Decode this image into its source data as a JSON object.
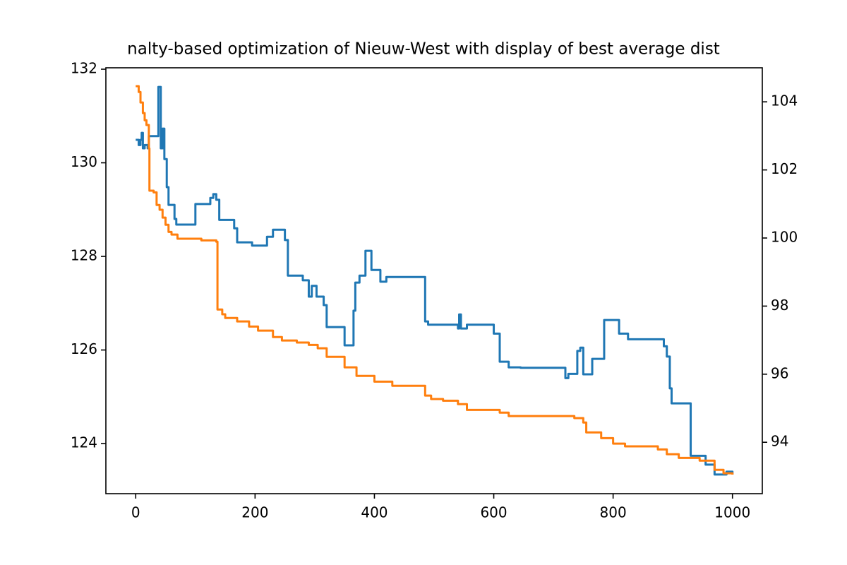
{
  "chart_data": {
    "type": "line",
    "drawstyle": "steps-post",
    "title": "nalty-based optimization of Nieuw-West with display of best average dist",
    "xlim": [
      -50,
      1050
    ],
    "xticks": [
      0,
      200,
      400,
      600,
      800,
      1000
    ],
    "ylim": [
      122.93,
      132.03
    ],
    "yticks": [
      124,
      126,
      128,
      130,
      132
    ],
    "y2lim": [
      92.49,
      105.0
    ],
    "y2ticks": [
      94,
      96,
      98,
      100,
      102,
      104
    ],
    "series": [
      {
        "color": "#1f77b4",
        "x": [
          0,
          5,
          8,
          10,
          12,
          15,
          20,
          22,
          35,
          38,
          42,
          45,
          48,
          52,
          55,
          65,
          68,
          100,
          125,
          130,
          135,
          140,
          165,
          170,
          195,
          220,
          230,
          250,
          255,
          280,
          290,
          295,
          303,
          315,
          320,
          350,
          365,
          368,
          375,
          385,
          395,
          410,
          420,
          485,
          490,
          540,
          542,
          545,
          555,
          600,
          610,
          625,
          645,
          720,
          725,
          740,
          745,
          750,
          765,
          785,
          810,
          825,
          885,
          890,
          895,
          898,
          930,
          955,
          970,
          990,
          1000
        ],
        "values": [
          130.49,
          130.38,
          130.49,
          130.64,
          130.31,
          130.38,
          130.31,
          130.57,
          130.57,
          131.62,
          130.31,
          130.73,
          130.08,
          129.48,
          129.1,
          128.8,
          128.68,
          129.12,
          129.25,
          129.33,
          129.21,
          128.78,
          128.6,
          128.3,
          128.23,
          128.42,
          128.57,
          128.35,
          127.59,
          127.49,
          127.14,
          127.37,
          127.14,
          126.96,
          126.49,
          126.1,
          126.84,
          127.44,
          127.59,
          128.12,
          127.71,
          127.46,
          127.56,
          126.61,
          126.54,
          126.46,
          126.76,
          126.46,
          126.54,
          126.35,
          125.75,
          125.63,
          125.62,
          125.4,
          125.49,
          125.98,
          126.05,
          125.48,
          125.81,
          126.64,
          126.35,
          126.23,
          126.08,
          125.86,
          125.18,
          124.86,
          123.74,
          123.55,
          123.34,
          123.4,
          123.34
        ]
      },
      {
        "color": "#ff7f0e",
        "axis": "y2",
        "x": [
          0,
          5,
          8,
          12,
          15,
          18,
          22,
          23,
          30,
          35,
          40,
          45,
          50,
          55,
          60,
          70,
          110,
          135,
          137,
          145,
          150,
          170,
          190,
          205,
          230,
          245,
          270,
          290,
          305,
          320,
          350,
          370,
          400,
          430,
          485,
          495,
          515,
          540,
          555,
          610,
          625,
          735,
          750,
          755,
          780,
          800,
          820,
          875,
          890,
          910,
          945,
          970,
          985,
          1000
        ],
        "values": [
          104.46,
          104.29,
          103.98,
          103.67,
          103.46,
          103.32,
          102.63,
          101.39,
          101.34,
          100.97,
          100.83,
          100.6,
          100.39,
          100.18,
          100.1,
          99.98,
          99.93,
          99.89,
          97.9,
          97.76,
          97.65,
          97.55,
          97.4,
          97.28,
          97.09,
          96.99,
          96.93,
          96.86,
          96.76,
          96.51,
          96.2,
          95.95,
          95.78,
          95.66,
          95.37,
          95.27,
          95.22,
          95.12,
          94.95,
          94.87,
          94.77,
          94.71,
          94.58,
          94.29,
          94.12,
          93.96,
          93.88,
          93.79,
          93.65,
          93.54,
          93.46,
          93.19,
          93.09,
          93.05
        ]
      }
    ]
  }
}
